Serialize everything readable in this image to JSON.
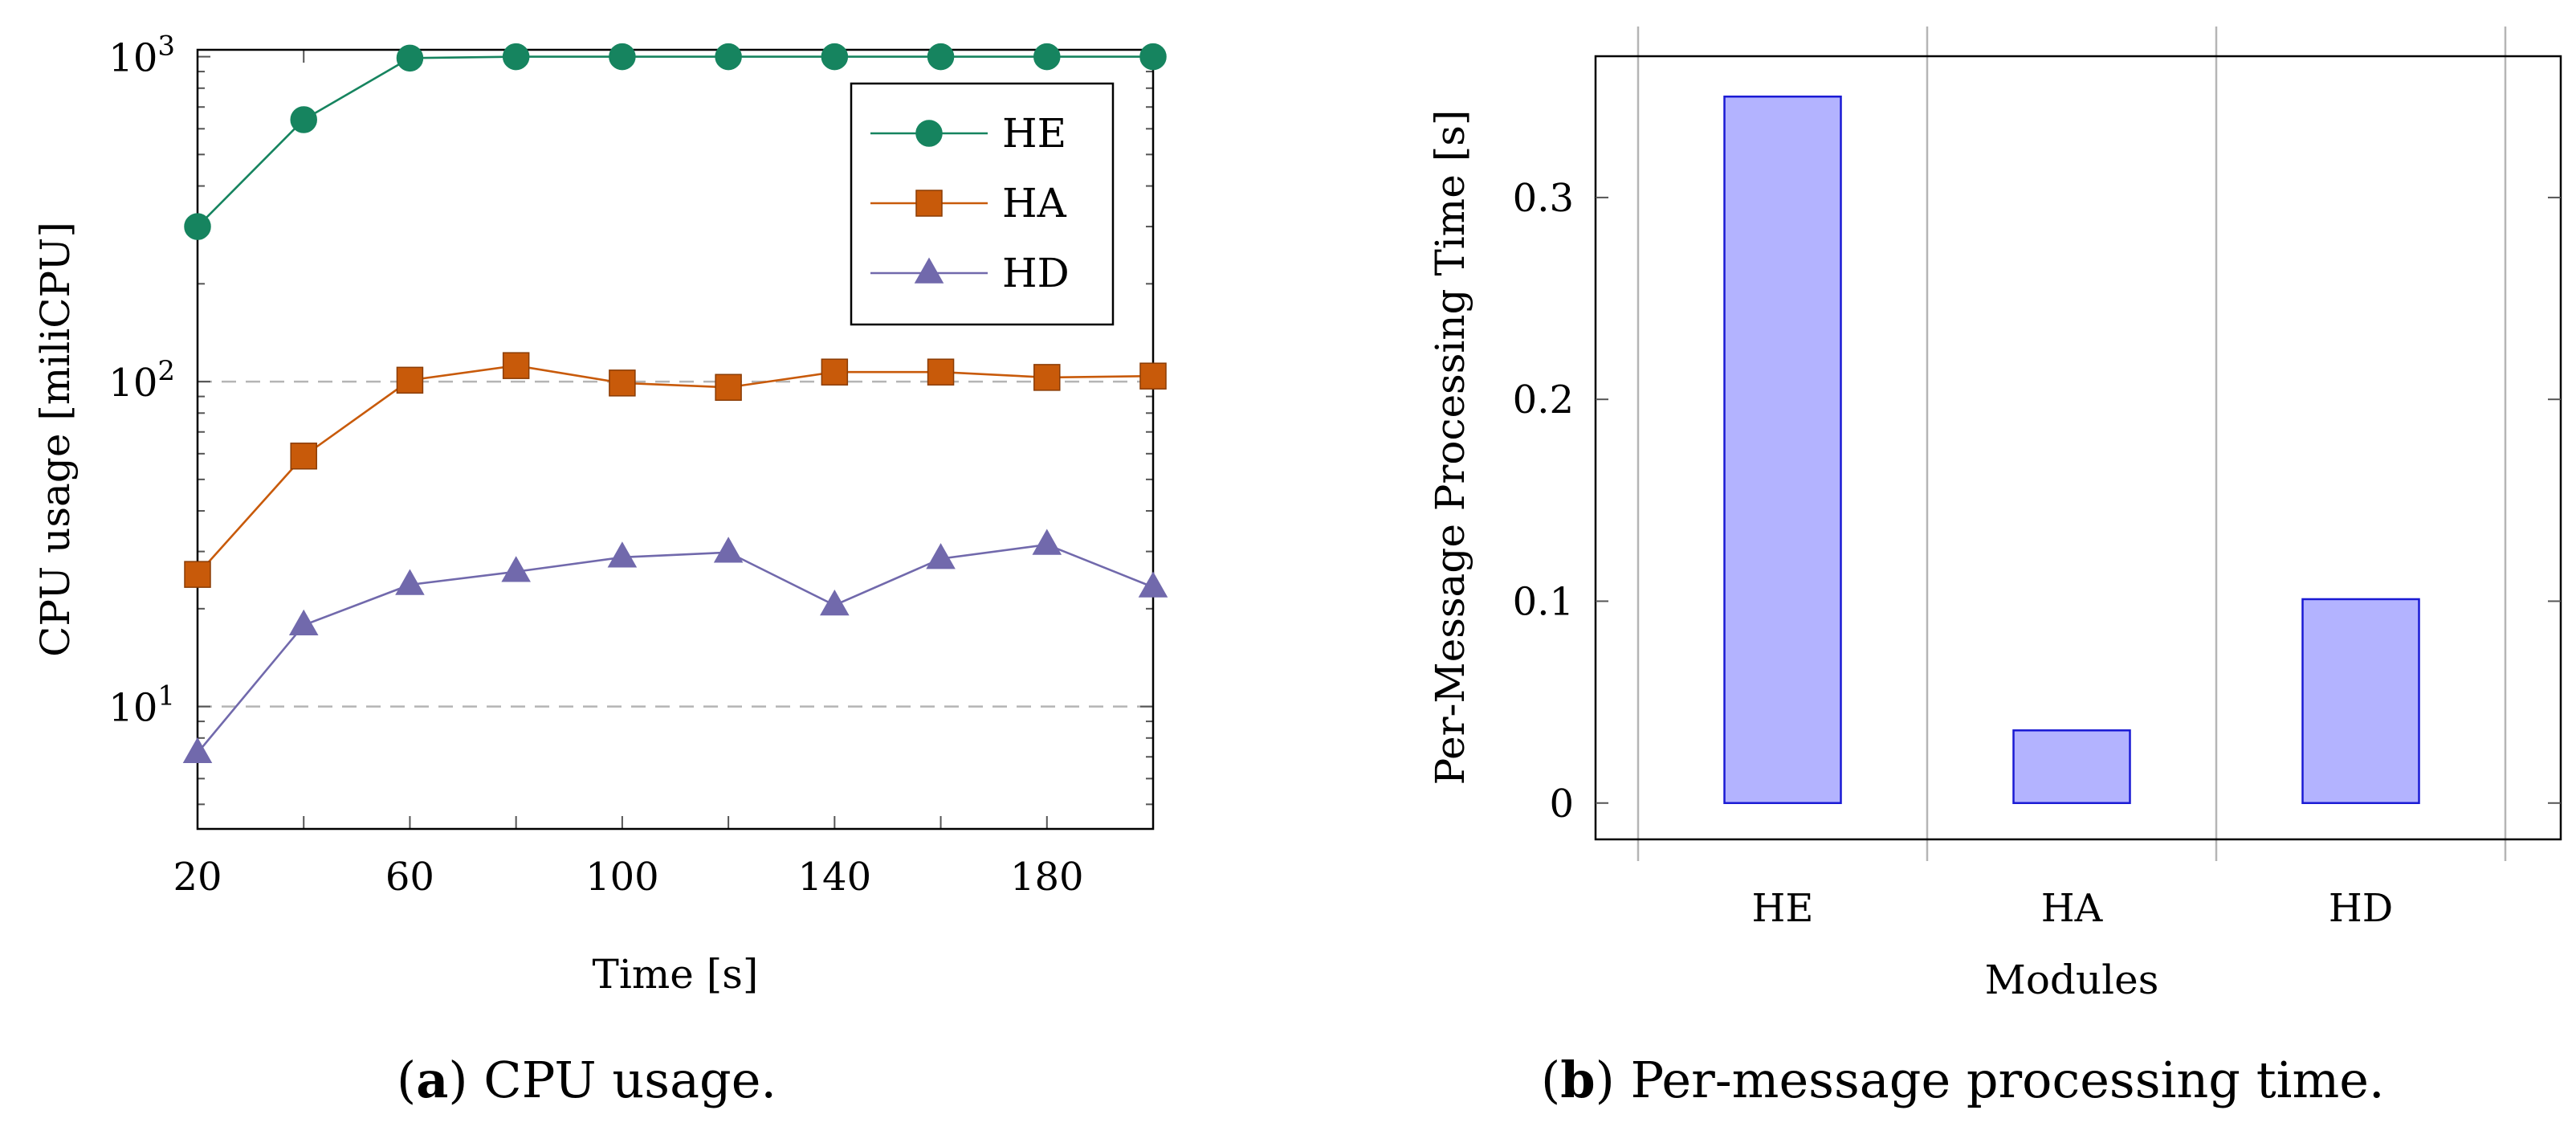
{
  "chart_data": [
    {
      "type": "line",
      "yscale": "log",
      "xlabel": "Time [s]",
      "ylabel": "CPU usage [miliCPU]",
      "xlim": [
        20,
        200
      ],
      "ylim": [
        4.2,
        1050
      ],
      "xticks": [
        20,
        60,
        100,
        140,
        180
      ],
      "yticks": [
        {
          "value": 10,
          "base": "10",
          "exp": "1"
        },
        {
          "value": 100,
          "base": "10",
          "exp": "2"
        },
        {
          "value": 1000,
          "base": "10",
          "exp": "3"
        }
      ],
      "grid": "horizontal-dashed-major",
      "legend_position": "top-right",
      "x": [
        20,
        40,
        60,
        80,
        100,
        120,
        140,
        160,
        180,
        200
      ],
      "series": [
        {
          "name": "HE",
          "marker": "circle",
          "color": "#16845f",
          "values": [
            300,
            640,
            990,
            1000,
            1000,
            1000,
            1000,
            1000,
            1000,
            1000
          ]
        },
        {
          "name": "HA",
          "marker": "square",
          "color": "#c85a0a",
          "values": [
            25.5,
            59,
            101,
            112,
            99,
            96,
            107,
            107,
            103,
            104
          ]
        },
        {
          "name": "HD",
          "marker": "triangle",
          "color": "#7169ac",
          "values": [
            7.2,
            17.8,
            23.7,
            26,
            28.8,
            29.8,
            20.5,
            28.5,
            31.5,
            23.3
          ]
        }
      ],
      "caption_label": "(a)",
      "caption_label_letter": "a",
      "caption_text": "CPU usage."
    },
    {
      "type": "bar",
      "xlabel": "Modules",
      "ylabel": "Per-Message Processing Time [s]",
      "categories": [
        "HE",
        "HA",
        "HD"
      ],
      "values": [
        0.35,
        0.036,
        0.101
      ],
      "ylim": [
        -0.018,
        0.37
      ],
      "yticks": [
        0,
        0.1,
        0.2,
        0.3
      ],
      "ytick_labels": [
        "0",
        "0.1",
        "0.2",
        "0.3"
      ],
      "grid": "vertical-between-categories",
      "bar_fill": "#b3b3ff",
      "bar_stroke": "#1a1ad4",
      "caption_label": "(b)",
      "caption_label_letter": "b",
      "caption_text": "Per-message processing time."
    }
  ]
}
